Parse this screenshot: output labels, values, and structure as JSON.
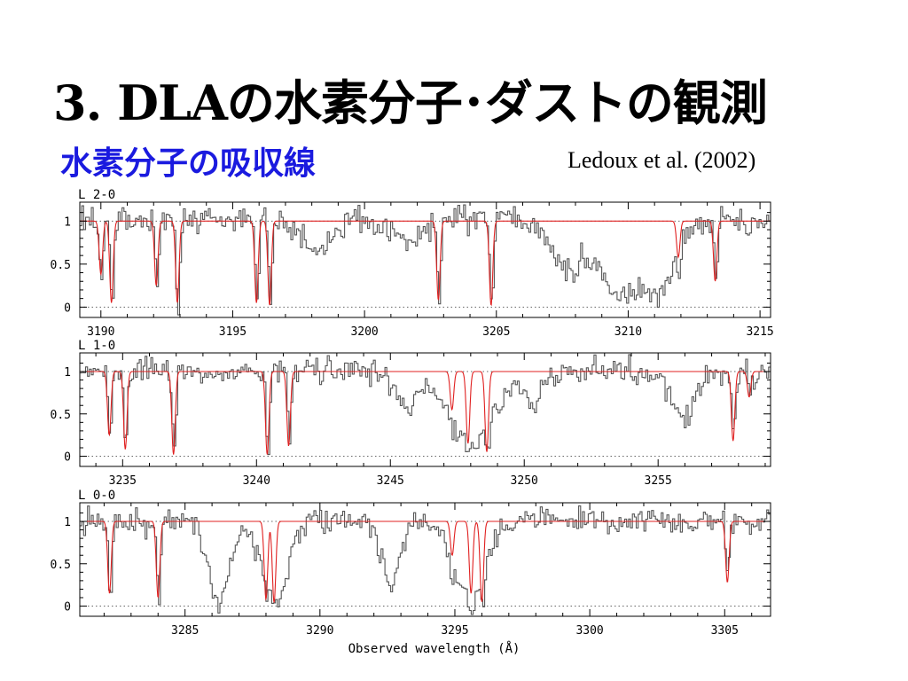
{
  "slide": {
    "title": "3. DLAの水素分子･ダストの観測",
    "subtitle": "水素分子の吸収線",
    "citation": "Ledoux et al. (2002)"
  },
  "colors": {
    "subtitle": "#1a1adf",
    "spectrum": "#555555",
    "model": "#e02020",
    "frame": "#000000"
  },
  "chart_data": [
    {
      "type": "line",
      "panel_label": "L 2-0",
      "xlabel": "",
      "xlim": [
        3189.2,
        3215.4
      ],
      "ylim": [
        -0.12,
        1.22
      ],
      "y_ticks": [
        0,
        0.5,
        1
      ],
      "y_tick_labels": [
        "0",
        "0.5",
        "1"
      ],
      "x_ticks": [
        3190,
        3195,
        3200,
        3205,
        3210,
        3215
      ],
      "x_tick_labels": [
        "3190",
        "3195",
        "3200",
        "3205",
        "3210",
        "3215"
      ],
      "reference_lines": [
        0,
        1
      ],
      "series": [
        {
          "role": "model",
          "continuum": 1.0,
          "lines": [
            {
              "center": 3190.0,
              "depth": 0.62
            },
            {
              "center": 3190.4,
              "depth": 0.95
            },
            {
              "center": 3192.1,
              "depth": 0.75
            },
            {
              "center": 3192.9,
              "depth": 0.95
            },
            {
              "center": 3195.9,
              "depth": 0.95
            },
            {
              "center": 3196.4,
              "depth": 0.98
            },
            {
              "center": 3202.8,
              "depth": 0.92
            },
            {
              "center": 3204.8,
              "depth": 0.98
            },
            {
              "center": 3211.9,
              "depth": 0.42
            },
            {
              "center": 3213.3,
              "depth": 0.7
            }
          ]
        },
        {
          "role": "observed",
          "broad_features": [
            {
              "center": 3198.2,
              "width": 0.8,
              "depth": 0.35
            },
            {
              "center": 3201.5,
              "width": 0.9,
              "depth": 0.25
            },
            {
              "center": 3207.7,
              "width": 1.0,
              "depth": 0.6
            },
            {
              "center": 3209.8,
              "width": 1.6,
              "depth": 0.85
            },
            {
              "center": 3211.1,
              "width": 1.0,
              "depth": 0.8
            }
          ]
        }
      ]
    },
    {
      "type": "line",
      "panel_label": "L 1-0",
      "xlabel": "",
      "xlim": [
        3233.4,
        3259.2
      ],
      "ylim": [
        -0.12,
        1.22
      ],
      "y_ticks": [
        0,
        0.5,
        1
      ],
      "y_tick_labels": [
        "0",
        "0.5",
        "1"
      ],
      "x_ticks": [
        3235,
        3240,
        3245,
        3250,
        3255
      ],
      "x_tick_labels": [
        "3235",
        "3240",
        "3245",
        "3250",
        "3255"
      ],
      "reference_lines": [
        0,
        1
      ],
      "series": [
        {
          "role": "model",
          "continuum": 1.0,
          "lines": [
            {
              "center": 3234.5,
              "depth": 0.75
            },
            {
              "center": 3235.1,
              "depth": 0.92
            },
            {
              "center": 3236.9,
              "depth": 0.98
            },
            {
              "center": 3240.4,
              "depth": 0.98
            },
            {
              "center": 3241.2,
              "depth": 0.88
            },
            {
              "center": 3247.3,
              "depth": 0.45
            },
            {
              "center": 3247.9,
              "depth": 0.85
            },
            {
              "center": 3248.6,
              "depth": 0.95
            },
            {
              "center": 3257.8,
              "depth": 0.82
            },
            {
              "center": 3258.4,
              "depth": 0.3
            }
          ]
        },
        {
          "role": "observed",
          "broad_features": [
            {
              "center": 3248.0,
              "width": 1.6,
              "depth": 0.85
            },
            {
              "center": 3245.6,
              "width": 0.6,
              "depth": 0.45
            },
            {
              "center": 3250.3,
              "width": 0.7,
              "depth": 0.35
            },
            {
              "center": 3255.9,
              "width": 0.8,
              "depth": 0.55
            }
          ]
        }
      ]
    },
    {
      "type": "line",
      "panel_label": "L 0-0",
      "xlabel": "Observed wavelength (Å)",
      "xlim": [
        3281.1,
        3306.7
      ],
      "ylim": [
        -0.12,
        1.22
      ],
      "y_ticks": [
        0,
        0.5,
        1
      ],
      "y_tick_labels": [
        "0",
        "0.5",
        "1"
      ],
      "x_ticks": [
        3285,
        3290,
        3295,
        3300,
        3305
      ],
      "x_tick_labels": [
        "3285",
        "3290",
        "3295",
        "3300",
        "3305"
      ],
      "reference_lines": [
        0,
        1
      ],
      "series": [
        {
          "role": "model",
          "continuum": 1.0,
          "lines": [
            {
              "center": 3282.2,
              "depth": 0.85
            },
            {
              "center": 3284.0,
              "depth": 0.9
            },
            {
              "center": 3288.0,
              "depth": 0.92
            },
            {
              "center": 3288.3,
              "depth": 0.96
            },
            {
              "center": 3294.9,
              "depth": 0.4
            },
            {
              "center": 3295.6,
              "depth": 0.85
            },
            {
              "center": 3296.0,
              "depth": 0.95
            },
            {
              "center": 3305.1,
              "depth": 0.72
            }
          ]
        },
        {
          "role": "observed",
          "broad_features": [
            {
              "center": 3286.2,
              "width": 0.7,
              "depth": 0.95
            },
            {
              "center": 3288.3,
              "width": 0.8,
              "depth": 0.95
            },
            {
              "center": 3292.6,
              "width": 0.6,
              "depth": 0.75
            },
            {
              "center": 3295.5,
              "width": 1.0,
              "depth": 0.95
            }
          ]
        }
      ]
    }
  ]
}
